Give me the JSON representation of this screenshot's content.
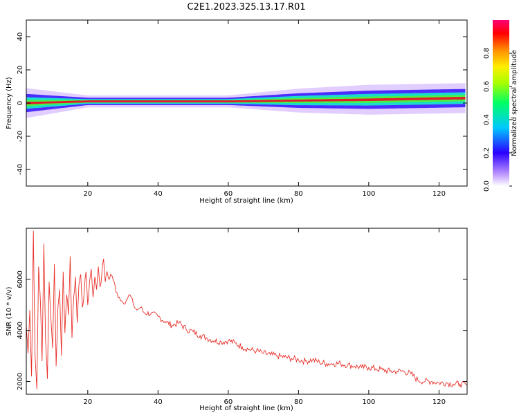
{
  "title": "C2E1.2023.325.13.17.R01",
  "colors": {
    "snr_line": "#e8302a",
    "band_outer": "#c9a6ff",
    "band_mid": "#3b1cff",
    "band_inner": "#18e6c8",
    "band_core_green": "#4ff03a",
    "band_core_red": "#e8102a"
  },
  "chart_data": [
    {
      "type": "heatmap",
      "xlabel": "Height of straight line (km)",
      "ylabel": "Frequency (Hz)",
      "xlim": [
        2.5,
        128
      ],
      "ylim": [
        -50,
        50
      ],
      "xticks": [
        20,
        40,
        60,
        80,
        100,
        120
      ],
      "yticks": [
        -40,
        -20,
        0,
        20,
        40
      ],
      "dominant_frequency_band": [
        {
          "x": 2.5,
          "freq": 0,
          "halfwidth": 5
        },
        {
          "x": 20,
          "freq": 1,
          "halfwidth": 2
        },
        {
          "x": 60,
          "freq": 1,
          "halfwidth": 2
        },
        {
          "x": 80,
          "freq": 1.5,
          "halfwidth": 4
        },
        {
          "x": 100,
          "freq": 2,
          "halfwidth": 5
        },
        {
          "x": 128,
          "freq": 3,
          "halfwidth": 5
        }
      ],
      "colorbar": {
        "label": "Normalized spectral amplitude",
        "range": [
          0,
          1
        ],
        "ticks": [
          "0.0",
          "0.2",
          "0.4",
          "0.6",
          "0.8"
        ]
      },
      "grid": false
    },
    {
      "type": "line",
      "xlabel": "Height of straight line (km)",
      "ylabel": "SNR (10 * v/v)",
      "xlim": [
        2.5,
        128
      ],
      "ylim": [
        1500,
        8000
      ],
      "xticks": [
        20,
        40,
        60,
        80,
        100,
        120
      ],
      "yticks": [
        2000,
        4000,
        6000
      ],
      "series": [
        {
          "x": [
            2.5,
            3,
            3.5,
            4,
            4.5,
            5,
            5.5,
            6,
            6.5,
            7,
            7.5,
            8,
            8.5,
            9,
            9.5,
            10,
            10.5,
            11,
            11.5,
            12,
            12.5,
            13,
            13.5,
            14,
            14.5,
            15,
            15.5,
            16,
            16.5,
            17,
            17.5,
            18,
            18.5,
            19,
            19.5,
            20,
            20.5,
            21,
            21.5,
            22,
            22.5,
            23,
            23.5,
            24,
            24.5,
            25,
            25.5,
            26,
            26.5,
            27,
            27.5,
            28,
            29,
            30,
            31,
            32,
            33,
            34,
            35,
            36,
            38,
            40,
            42,
            44,
            46,
            48,
            50,
            52,
            54,
            56,
            58,
            60,
            62,
            64,
            66,
            68,
            70,
            72,
            74,
            76,
            78,
            80,
            82,
            84,
            86,
            88,
            90,
            92,
            94,
            96,
            98,
            100,
            102,
            104,
            106,
            108,
            110,
            112,
            114,
            116,
            118,
            120,
            122,
            124,
            126,
            128
          ],
          "y": [
            4200,
            3100,
            4800,
            2200,
            7900,
            3000,
            1700,
            6500,
            5200,
            2800,
            7400,
            3600,
            2100,
            5900,
            4500,
            3300,
            6600,
            2600,
            4900,
            5600,
            3000,
            6300,
            3900,
            5400,
            4600,
            6900,
            3700,
            5300,
            6100,
            4300,
            5800,
            6200,
            4900,
            5500,
            6300,
            5000,
            5900,
            6400,
            5300,
            6100,
            5600,
            6500,
            5700,
            6200,
            6800,
            5900,
            6300,
            6000,
            6200,
            6100,
            5900,
            5500,
            5300,
            5100,
            5200,
            5400,
            5000,
            4800,
            4900,
            4700,
            4650,
            4550,
            4350,
            4200,
            4300,
            4050,
            3950,
            3800,
            3700,
            3600,
            3550,
            3600,
            3500,
            3350,
            3250,
            3200,
            3100,
            3050,
            3000,
            2950,
            2900,
            2850,
            2800,
            2850,
            2750,
            2700,
            2700,
            2700,
            2650,
            2600,
            2550,
            2550,
            2500,
            2450,
            2400,
            2400,
            2400,
            2300,
            2050,
            2000,
            2000,
            1950,
            1950,
            1900,
            1900,
            1850
          ]
        }
      ],
      "grid": false
    }
  ]
}
